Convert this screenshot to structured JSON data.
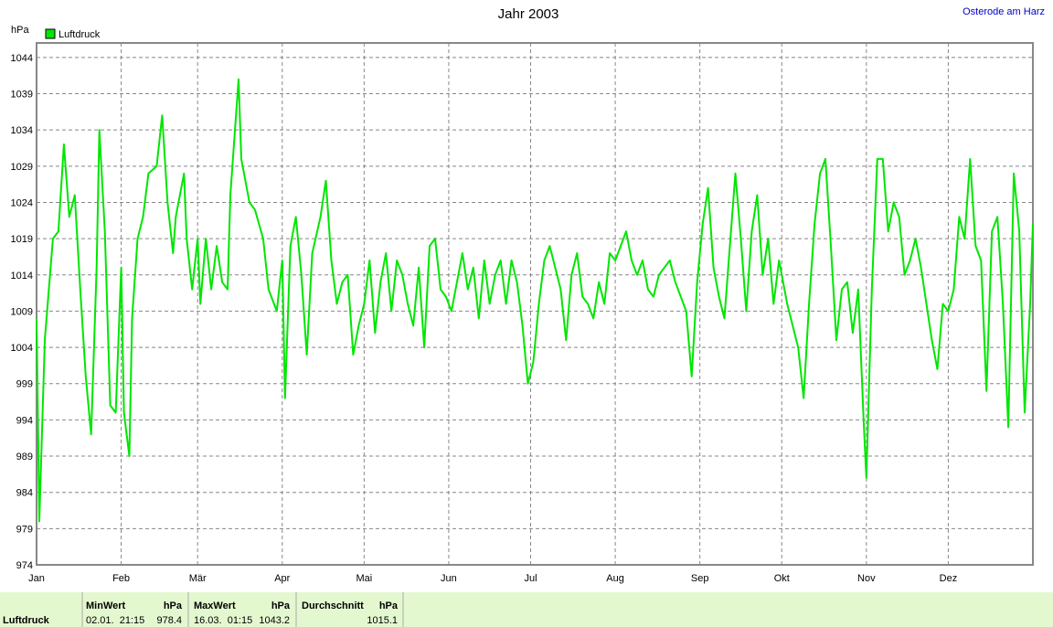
{
  "chart_data": {
    "type": "line",
    "title": "Jahr 2003",
    "subtitle": "Osterode am Harz",
    "ylabel": "hPa",
    "x": [
      1,
      2,
      4,
      7,
      9,
      11,
      13,
      15,
      17,
      19,
      21,
      23,
      24,
      26,
      28,
      30,
      32,
      33,
      35,
      36,
      38,
      40,
      42,
      45,
      47,
      49,
      51,
      52,
      55,
      56,
      58,
      60,
      61,
      63,
      65,
      67,
      69,
      71,
      72,
      75,
      76,
      79,
      81,
      84,
      86,
      89,
      91,
      92,
      94,
      96,
      98,
      100,
      102,
      105,
      107,
      109,
      111,
      113,
      115,
      117,
      119,
      121,
      123,
      125,
      127,
      129,
      131,
      133,
      135,
      137,
      139,
      141,
      143,
      145,
      147,
      149,
      151,
      153,
      155,
      157,
      159,
      161,
      163,
      165,
      167,
      169,
      171,
      173,
      175,
      177,
      179,
      181,
      183,
      185,
      187,
      189,
      191,
      193,
      195,
      197,
      199,
      201,
      203,
      205,
      207,
      209,
      211,
      213,
      215,
      217,
      219,
      221,
      223,
      225,
      227,
      229,
      231,
      233,
      235,
      237,
      239,
      241,
      243,
      245,
      247,
      249,
      251,
      253,
      255,
      257,
      259,
      261,
      263,
      265,
      267,
      269,
      271,
      273,
      276,
      278,
      280,
      282,
      284,
      286,
      288,
      290,
      292,
      294,
      296,
      298,
      300,
      302,
      304,
      305,
      307,
      309,
      311,
      313,
      315,
      317,
      319,
      321,
      323,
      325,
      327,
      329,
      331,
      333,
      335,
      337,
      339,
      341,
      343,
      345,
      347,
      349,
      351,
      353,
      355,
      357,
      359,
      361,
      363,
      365,
      366
    ],
    "series": [
      {
        "name": "Luftdruck",
        "color": "#00e600",
        "values": [
          1008,
          980,
          1005,
          1019,
          1020,
          1032,
          1022,
          1025,
          1012,
          1000,
          992,
          1015,
          1034,
          1020,
          996,
          995,
          1015,
          995,
          989,
          1008,
          1019,
          1022,
          1028,
          1029,
          1036,
          1024,
          1017,
          1022,
          1028,
          1019,
          1012,
          1019,
          1010,
          1019,
          1012,
          1018,
          1013,
          1012,
          1025,
          1041,
          1030,
          1024,
          1023,
          1019,
          1012,
          1009,
          1016,
          997,
          1018,
          1022,
          1014,
          1003,
          1017,
          1022,
          1027,
          1016,
          1010,
          1013,
          1014,
          1003,
          1007,
          1010,
          1016,
          1006,
          1013,
          1017,
          1009,
          1016,
          1014,
          1010,
          1007,
          1015,
          1004,
          1018,
          1019,
          1012,
          1011,
          1009,
          1013,
          1017,
          1012,
          1015,
          1008,
          1016,
          1010,
          1014,
          1016,
          1010,
          1016,
          1013,
          1007,
          999,
          1002,
          1010,
          1016,
          1018,
          1015,
          1012,
          1005,
          1014,
          1017,
          1011,
          1010,
          1008,
          1013,
          1010,
          1017,
          1016,
          1018,
          1020,
          1016,
          1014,
          1016,
          1012,
          1011,
          1014,
          1015,
          1016,
          1013,
          1011,
          1009,
          1000,
          1013,
          1021,
          1026,
          1015,
          1011,
          1008,
          1018,
          1028,
          1019,
          1009,
          1020,
          1025,
          1014,
          1019,
          1010,
          1016,
          1010,
          1007,
          1004,
          997,
          1010,
          1021,
          1028,
          1030,
          1018,
          1005,
          1012,
          1013,
          1006,
          1012,
          994,
          986,
          1012,
          1030,
          1030,
          1020,
          1024,
          1022,
          1014,
          1016,
          1019,
          1015,
          1010,
          1005,
          1001,
          1010,
          1009,
          1012,
          1022,
          1019,
          1030,
          1018,
          1016,
          998,
          1020,
          1022,
          1010,
          993,
          1028,
          1020,
          995,
          1010,
          1021
        ]
      }
    ],
    "xlim": [
      1,
      366
    ],
    "xticks": [
      {
        "value": 1,
        "label": "Jan"
      },
      {
        "value": 32,
        "label": "Feb"
      },
      {
        "value": 60,
        "label": "Mär"
      },
      {
        "value": 91,
        "label": "Apr"
      },
      {
        "value": 121,
        "label": "Mai"
      },
      {
        "value": 152,
        "label": "Jun"
      },
      {
        "value": 182,
        "label": "Jul"
      },
      {
        "value": 213,
        "label": "Aug"
      },
      {
        "value": 244,
        "label": "Sep"
      },
      {
        "value": 274,
        "label": "Okt"
      },
      {
        "value": 305,
        "label": "Nov"
      },
      {
        "value": 335,
        "label": "Dez"
      }
    ],
    "ylim": [
      974,
      1046
    ],
    "yticks": [
      974,
      979,
      984,
      989,
      994,
      999,
      1004,
      1009,
      1014,
      1019,
      1024,
      1029,
      1034,
      1039,
      1044
    ],
    "grid": true
  },
  "stats": {
    "row_label": "Luftdruck",
    "columns": [
      {
        "header": "MinWert",
        "unit": "hPa",
        "time": "02.01.  21:15",
        "value": "978.4"
      },
      {
        "header": "MaxWert",
        "unit": "hPa",
        "time": "16.03.  01:15",
        "value": "1043.2"
      },
      {
        "header": "Durchschnitt",
        "unit": "hPa",
        "value": "1015.1"
      }
    ]
  }
}
